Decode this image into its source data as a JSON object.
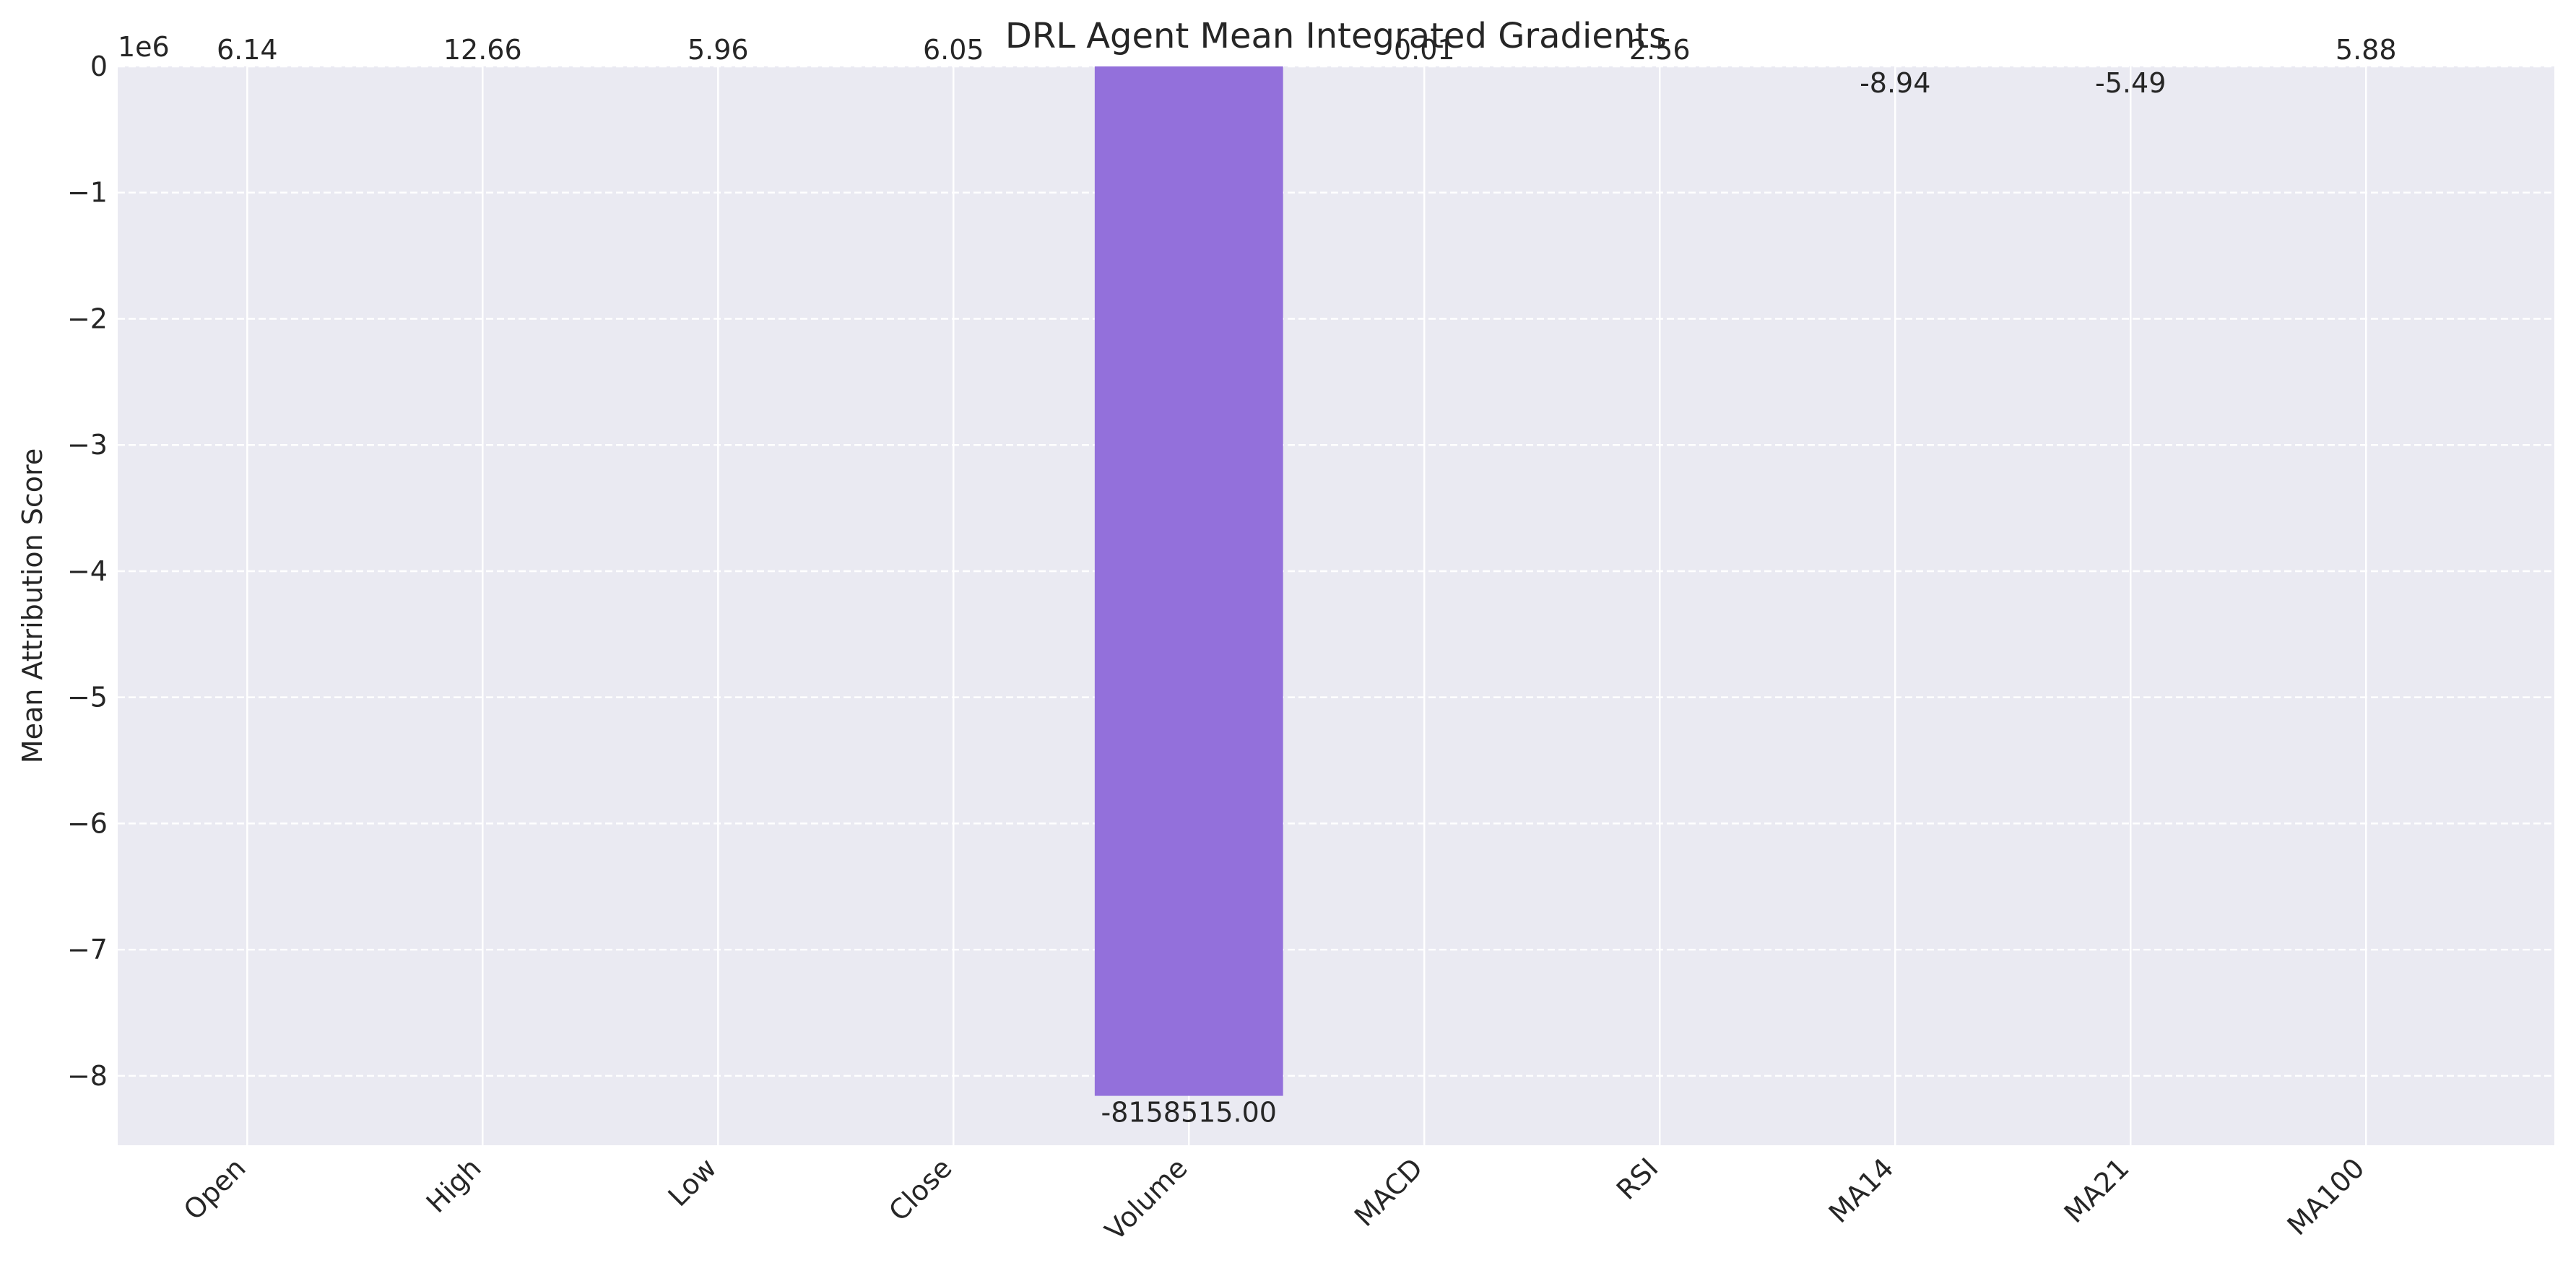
{
  "chart_data": {
    "type": "bar",
    "title": "DRL Agent Mean Integrated Gradients",
    "xlabel": "",
    "ylabel": "Mean Attribution Score",
    "categories": [
      "Open",
      "High",
      "Low",
      "Close",
      "Volume",
      "MACD",
      "RSI",
      "MA14",
      "MA21",
      "MA100"
    ],
    "values": [
      6.14,
      12.66,
      5.96,
      6.05,
      -8158515.0,
      0.01,
      2.56,
      -8.94,
      -5.49,
      5.88
    ],
    "value_labels": [
      "6.14",
      "12.66",
      "5.96",
      "6.05",
      "-8158515.00",
      "0.01",
      "2.56",
      "-8.94",
      "-5.49",
      "5.88"
    ],
    "yticks": [
      0,
      -1,
      -2,
      -3,
      -4,
      -5,
      -6,
      -7,
      -8
    ],
    "ytick_labels": [
      "0",
      "−1",
      "−2",
      "−3",
      "−4",
      "−5",
      "−6",
      "−7",
      "−8"
    ],
    "y_scale_factor": 1000000,
    "y_offset_label": "1e6",
    "ylim": [
      -8.55,
      0
    ],
    "grid": true,
    "colors": {
      "bar": "#9370DB",
      "plot_background": "#EAEAF2",
      "grid": "#FFFFFF",
      "text": "#262626"
    }
  }
}
